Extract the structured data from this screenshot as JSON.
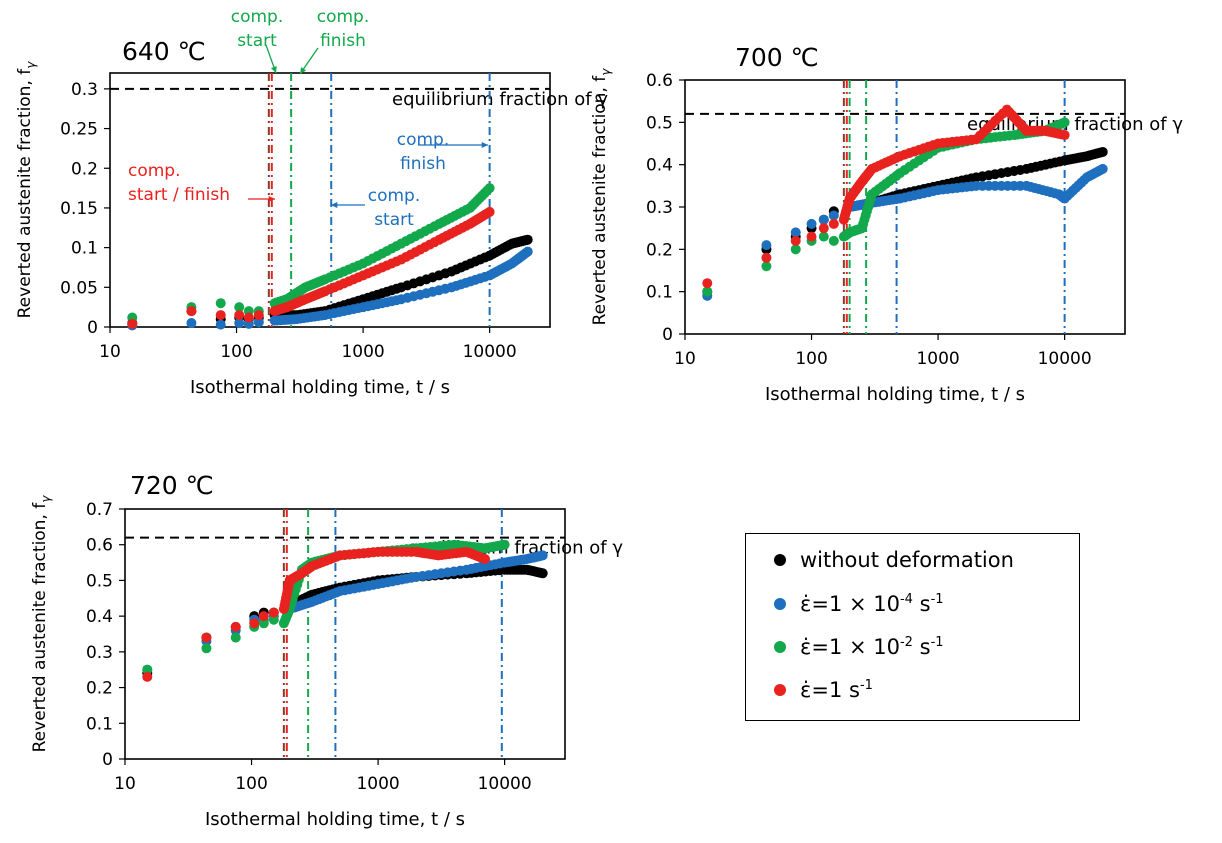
{
  "colors": {
    "black": "#000000",
    "blue": "#1f6fbf",
    "green": "#12a84b",
    "red": "#e8231f",
    "dark_red": "#8b3a2a"
  },
  "legend": {
    "items": [
      {
        "series": "without",
        "label": "without deformation",
        "color": "#000000"
      },
      {
        "series": "e4",
        "pre": "ε̇=1 × 10",
        "exp": "-4",
        "unit": " s",
        "unit_exp": "-1",
        "color": "#1f6fbf"
      },
      {
        "series": "e2",
        "pre": "ε̇=1 × 10",
        "exp": "-2",
        "unit": " s",
        "unit_exp": "-1",
        "color": "#12a84b"
      },
      {
        "series": "e0",
        "pre": "ε̇=1 s",
        "exp": "-1",
        "unit": "",
        "unit_exp": "",
        "color": "#e8231f"
      }
    ]
  },
  "chart_data": [
    {
      "type": "scatter",
      "title": "640 ℃",
      "xlabel": "Isothermal holding time, t / s",
      "ylabel": "Reverted austenite fraction, f",
      "ylabel_sub": "γ",
      "xscale": "log",
      "xlim": [
        10,
        30000
      ],
      "ylim": [
        0,
        0.32
      ],
      "xticks": [
        10,
        100,
        1000,
        10000
      ],
      "xtick_labels": [
        "10",
        "100",
        "1000",
        "10000"
      ],
      "yticks": [
        0,
        0.05,
        0.1,
        0.15,
        0.2,
        0.25,
        0.3
      ],
      "ytick_labels": [
        "0",
        "0.05",
        "0.1",
        "0.15",
        "0.2",
        "0.25",
        "0.3"
      ],
      "equilibrium": {
        "y": 0.3,
        "label": "equilibrium fraction of γ"
      },
      "vlines": [
        {
          "x": 180,
          "color": "#8b3a2a"
        },
        {
          "x": 190,
          "color": "#e8231f"
        },
        {
          "x": 270,
          "color": "#12a84b"
        },
        {
          "x": 560,
          "color": "#1f6fbf"
        },
        {
          "x": 10000,
          "color": "#1f6fbf"
        }
      ],
      "annotations": [
        {
          "lines": [
            "comp.",
            "start"
          ],
          "color": "#12a84b"
        },
        {
          "lines": [
            "comp.",
            "finish"
          ],
          "color": "#12a84b"
        },
        {
          "lines": [
            "comp.",
            "start / finish"
          ],
          "color": "#e8231f"
        },
        {
          "lines": [
            "comp.",
            "finish"
          ],
          "color": "#1f6fbf"
        },
        {
          "lines": [
            "comp.",
            "start"
          ],
          "color": "#1f6fbf"
        }
      ],
      "series": [
        {
          "key": "without",
          "color": "#000000",
          "x": [
            15,
            44,
            75,
            105,
            125,
            150,
            200,
            300,
            500,
            1000,
            2000,
            5000,
            10000,
            15000,
            20000
          ],
          "y": [
            0.005,
            0.02,
            0.01,
            0.012,
            0.01,
            0.012,
            0.015,
            0.015,
            0.02,
            0.035,
            0.05,
            0.07,
            0.09,
            0.105,
            0.11
          ]
        },
        {
          "key": "e4",
          "color": "#1f6fbf",
          "x": [
            15,
            44,
            75,
            105,
            125,
            150,
            200,
            300,
            500,
            1000,
            2000,
            5000,
            10000,
            15000,
            20000
          ],
          "y": [
            0.002,
            0.005,
            0.003,
            0.005,
            0.004,
            0.006,
            0.008,
            0.01,
            0.015,
            0.025,
            0.035,
            0.05,
            0.065,
            0.08,
            0.095
          ]
        },
        {
          "key": "e2",
          "color": "#12a84b",
          "x": [
            15,
            44,
            75,
            105,
            125,
            150,
            200,
            250,
            350,
            500,
            1000,
            2000,
            4000,
            7000,
            10000
          ],
          "y": [
            0.012,
            0.025,
            0.03,
            0.025,
            0.02,
            0.02,
            0.03,
            0.035,
            0.05,
            0.06,
            0.08,
            0.105,
            0.13,
            0.15,
            0.175
          ]
        },
        {
          "key": "e0",
          "color": "#e8231f",
          "x": [
            15,
            44,
            75,
            105,
            125,
            150,
            200,
            250,
            350,
            500,
            1000,
            2000,
            4000,
            7000,
            10000
          ],
          "y": [
            0.004,
            0.02,
            0.015,
            0.015,
            0.012,
            0.015,
            0.02,
            0.025,
            0.035,
            0.045,
            0.065,
            0.085,
            0.11,
            0.13,
            0.145
          ]
        }
      ]
    },
    {
      "type": "scatter",
      "title": "700 ℃",
      "xlabel": "Isothermal holding time, t / s",
      "ylabel": "Reverted austenite fraction, f",
      "ylabel_sub": "γ",
      "xscale": "log",
      "xlim": [
        10,
        30000
      ],
      "ylim": [
        0,
        0.6
      ],
      "xticks": [
        10,
        100,
        1000,
        10000
      ],
      "xtick_labels": [
        "10",
        "100",
        "1000",
        "10000"
      ],
      "yticks": [
        0,
        0.1,
        0.2,
        0.3,
        0.4,
        0.5,
        0.6
      ],
      "ytick_labels": [
        "0",
        "0.1",
        "0.2",
        "0.3",
        "0.4",
        "0.5",
        "0.6"
      ],
      "equilibrium": {
        "y": 0.52,
        "label": "equilibrium fraction of γ"
      },
      "vlines": [
        {
          "x": 180,
          "color": "#8b3a2a"
        },
        {
          "x": 190,
          "color": "#e8231f"
        },
        {
          "x": 200,
          "color": "#12a84b"
        },
        {
          "x": 270,
          "color": "#12a84b"
        },
        {
          "x": 470,
          "color": "#1f6fbf"
        },
        {
          "x": 10000,
          "color": "#1f6fbf"
        }
      ],
      "annotations": [],
      "series": [
        {
          "key": "without",
          "color": "#000000",
          "x": [
            15,
            44,
            75,
            100,
            125,
            150,
            200,
            300,
            500,
            1000,
            2000,
            5000,
            10000,
            15000,
            20000
          ],
          "y": [
            0.1,
            0.2,
            0.23,
            0.25,
            0.27,
            0.29,
            0.3,
            0.31,
            0.33,
            0.35,
            0.37,
            0.39,
            0.41,
            0.42,
            0.43
          ]
        },
        {
          "key": "e4",
          "color": "#1f6fbf",
          "x": [
            15,
            44,
            75,
            100,
            125,
            150,
            200,
            300,
            500,
            1000,
            2000,
            5000,
            9000,
            10000,
            15000,
            20000
          ],
          "y": [
            0.09,
            0.21,
            0.24,
            0.26,
            0.27,
            0.28,
            0.3,
            0.31,
            0.32,
            0.34,
            0.35,
            0.35,
            0.33,
            0.32,
            0.37,
            0.39
          ]
        },
        {
          "key": "e2",
          "color": "#12a84b",
          "x": [
            15,
            44,
            75,
            100,
            125,
            150,
            180,
            200,
            250,
            300,
            500,
            1000,
            2000,
            4000,
            7000,
            10000
          ],
          "y": [
            0.1,
            0.16,
            0.2,
            0.22,
            0.23,
            0.22,
            0.23,
            0.24,
            0.25,
            0.33,
            0.38,
            0.44,
            0.46,
            0.47,
            0.48,
            0.5
          ]
        },
        {
          "key": "e0",
          "color": "#e8231f",
          "x": [
            15,
            44,
            75,
            100,
            125,
            150,
            180,
            200,
            250,
            300,
            500,
            1000,
            2000,
            3500,
            5000,
            7000,
            10000
          ],
          "y": [
            0.12,
            0.18,
            0.22,
            0.23,
            0.25,
            0.26,
            0.27,
            0.32,
            0.36,
            0.39,
            0.42,
            0.45,
            0.46,
            0.53,
            0.48,
            0.48,
            0.47
          ]
        }
      ]
    },
    {
      "type": "scatter",
      "title": "720 ℃",
      "xlabel": "Isothermal holding time, t / s",
      "ylabel": "Reverted austenite fraction, f",
      "ylabel_sub": "γ",
      "xscale": "log",
      "xlim": [
        10,
        30000
      ],
      "ylim": [
        0,
        0.7
      ],
      "xticks": [
        10,
        100,
        1000,
        10000
      ],
      "xtick_labels": [
        "10",
        "100",
        "1000",
        "10000"
      ],
      "yticks": [
        0,
        0.1,
        0.2,
        0.3,
        0.4,
        0.5,
        0.6,
        0.7
      ],
      "ytick_labels": [
        "0",
        "0.1",
        "0.2",
        "0.3",
        "0.4",
        "0.5",
        "0.6",
        "0.7"
      ],
      "equilibrium": {
        "y": 0.62,
        "label": "equilibrium fraction of γ"
      },
      "vlines": [
        {
          "x": 180,
          "color": "#8b3a2a"
        },
        {
          "x": 190,
          "color": "#e8231f"
        },
        {
          "x": 280,
          "color": "#12a84b"
        },
        {
          "x": 460,
          "color": "#1f6fbf"
        },
        {
          "x": 9500,
          "color": "#1f6fbf"
        }
      ],
      "annotations": [],
      "series": [
        {
          "key": "without",
          "color": "#000000",
          "x": [
            15,
            44,
            75,
            105,
            125,
            150,
            200,
            300,
            500,
            1000,
            2000,
            5000,
            10000,
            15000,
            20000
          ],
          "y": [
            0.24,
            0.34,
            0.37,
            0.4,
            0.41,
            0.41,
            0.43,
            0.46,
            0.48,
            0.5,
            0.51,
            0.52,
            0.53,
            0.53,
            0.52
          ]
        },
        {
          "key": "e4",
          "color": "#1f6fbf",
          "x": [
            15,
            44,
            75,
            105,
            125,
            150,
            200,
            300,
            500,
            1000,
            2000,
            5000,
            10000,
            15000,
            20000
          ],
          "y": [
            0.25,
            0.33,
            0.36,
            0.39,
            0.39,
            0.4,
            0.42,
            0.44,
            0.47,
            0.49,
            0.51,
            0.53,
            0.55,
            0.56,
            0.57
          ]
        },
        {
          "key": "e2",
          "color": "#12a84b",
          "x": [
            15,
            44,
            75,
            105,
            125,
            150,
            180,
            200,
            250,
            300,
            500,
            1000,
            2000,
            4000,
            7000,
            10000
          ],
          "y": [
            0.25,
            0.31,
            0.34,
            0.37,
            0.38,
            0.39,
            0.38,
            0.42,
            0.53,
            0.55,
            0.57,
            0.58,
            0.59,
            0.6,
            0.59,
            0.6
          ]
        },
        {
          "key": "e0",
          "color": "#e8231f",
          "x": [
            15,
            44,
            75,
            105,
            125,
            150,
            180,
            200,
            250,
            300,
            500,
            1000,
            2000,
            3000,
            5000,
            7000
          ],
          "y": [
            0.23,
            0.34,
            0.37,
            0.38,
            0.4,
            0.41,
            0.42,
            0.5,
            0.52,
            0.54,
            0.57,
            0.58,
            0.58,
            0.57,
            0.58,
            0.56
          ]
        }
      ]
    }
  ]
}
